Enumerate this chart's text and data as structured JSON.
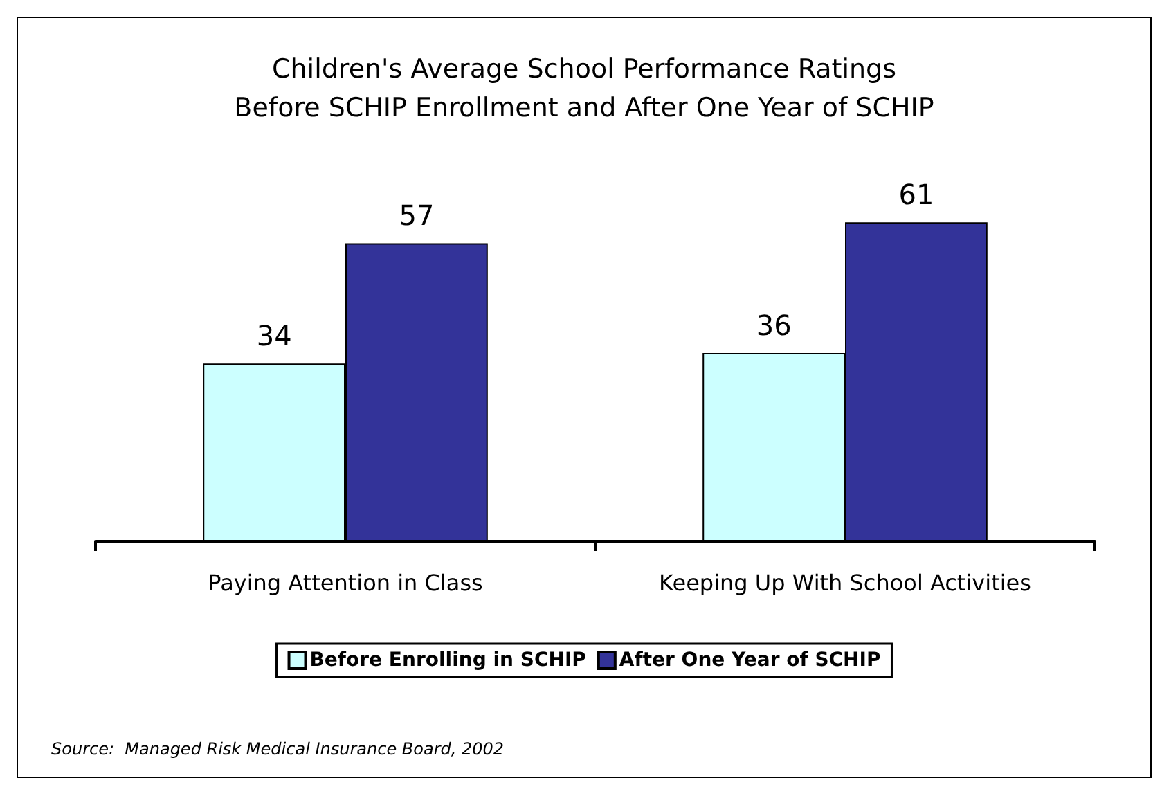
{
  "chart_data": {
    "type": "bar",
    "title": "Children's Average School Performance Ratings\nBefore SCHIP Enrollment and After One Year of SCHIP",
    "categories": [
      "Paying Attention in Class",
      "Keeping Up With School Activities"
    ],
    "series": [
      {
        "name": "Before Enrolling in SCHIP",
        "color": "#ccffff",
        "values": [
          34,
          36
        ]
      },
      {
        "name": "After One Year of SCHIP",
        "color": "#333399",
        "values": [
          57,
          61
        ]
      }
    ],
    "data_labels": true,
    "legend": "bottom",
    "grid": false,
    "annotations": [
      "Source:  Managed Risk Medical Insurance Board, 2002"
    ]
  }
}
